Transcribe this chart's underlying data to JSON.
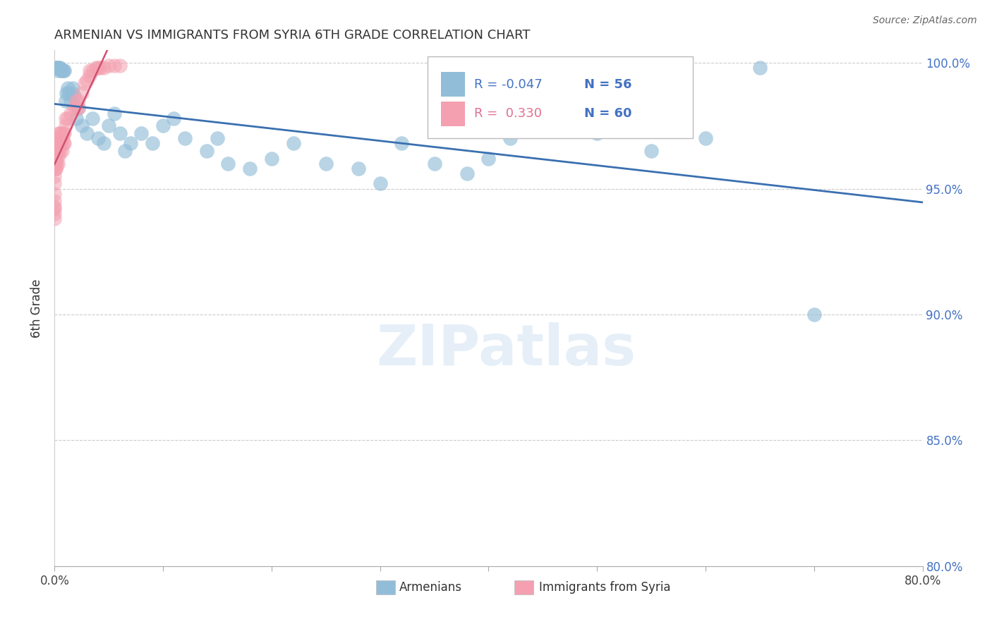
{
  "title": "ARMENIAN VS IMMIGRANTS FROM SYRIA 6TH GRADE CORRELATION CHART",
  "source": "Source: ZipAtlas.com",
  "ylabel": "6th Grade",
  "xlim": [
    0.0,
    0.8
  ],
  "ylim": [
    0.8,
    1.005
  ],
  "xticks": [
    0.0,
    0.1,
    0.2,
    0.3,
    0.4,
    0.5,
    0.6,
    0.7,
    0.8
  ],
  "xtick_labels_show": [
    "0.0%",
    "80.0%"
  ],
  "ytick_labels_right": [
    "80.0%",
    "85.0%",
    "90.0%",
    "95.0%",
    "100.0%"
  ],
  "yticks": [
    0.8,
    0.85,
    0.9,
    0.95,
    1.0
  ],
  "blue_color": "#92BDD8",
  "pink_color": "#F4A0B0",
  "trend_blue_color": "#3A70B0",
  "trend_pink_color": "#D05070",
  "legend_R_blue": "-0.047",
  "legend_N_blue": "56",
  "legend_R_pink": "0.330",
  "legend_N_pink": "60",
  "watermark_text": "ZIPatlas",
  "blue_x": [
    0.001,
    0.002,
    0.003,
    0.003,
    0.004,
    0.005,
    0.006,
    0.007,
    0.008,
    0.009,
    0.01,
    0.011,
    0.012,
    0.013,
    0.015,
    0.016,
    0.017,
    0.018,
    0.02,
    0.022,
    0.025,
    0.03,
    0.035,
    0.04,
    0.045,
    0.05,
    0.055,
    0.06,
    0.065,
    0.07,
    0.08,
    0.09,
    0.1,
    0.11,
    0.12,
    0.14,
    0.15,
    0.16,
    0.18,
    0.2,
    0.22,
    0.25,
    0.28,
    0.3,
    0.32,
    0.35,
    0.38,
    0.4,
    0.42,
    0.45,
    0.5,
    0.52,
    0.55,
    0.6,
    0.65,
    0.7
  ],
  "blue_y": [
    0.998,
    0.998,
    0.998,
    0.997,
    0.998,
    0.998,
    0.997,
    0.997,
    0.997,
    0.997,
    0.985,
    0.988,
    0.99,
    0.988,
    0.985,
    0.988,
    0.99,
    0.987,
    0.978,
    0.982,
    0.975,
    0.972,
    0.978,
    0.97,
    0.968,
    0.975,
    0.98,
    0.972,
    0.965,
    0.968,
    0.972,
    0.968,
    0.975,
    0.978,
    0.97,
    0.965,
    0.97,
    0.96,
    0.958,
    0.962,
    0.968,
    0.96,
    0.958,
    0.952,
    0.968,
    0.96,
    0.956,
    0.962,
    0.97,
    0.978,
    0.972,
    0.978,
    0.965,
    0.97,
    0.998,
    0.9
  ],
  "pink_x": [
    0.0,
    0.0,
    0.0,
    0.0,
    0.0,
    0.0,
    0.0,
    0.0,
    0.0,
    0.0,
    0.001,
    0.001,
    0.001,
    0.001,
    0.001,
    0.001,
    0.002,
    0.002,
    0.002,
    0.002,
    0.003,
    0.003,
    0.003,
    0.003,
    0.004,
    0.004,
    0.004,
    0.005,
    0.005,
    0.005,
    0.006,
    0.006,
    0.007,
    0.007,
    0.008,
    0.008,
    0.009,
    0.009,
    0.01,
    0.01,
    0.012,
    0.015,
    0.018,
    0.02,
    0.02,
    0.022,
    0.022,
    0.025,
    0.028,
    0.03,
    0.032,
    0.032,
    0.035,
    0.038,
    0.04,
    0.042,
    0.045,
    0.05,
    0.055,
    0.06
  ],
  "pink_y": [
    0.958,
    0.96,
    0.955,
    0.952,
    0.948,
    0.945,
    0.943,
    0.942,
    0.94,
    0.938,
    0.958,
    0.96,
    0.963,
    0.965,
    0.958,
    0.962,
    0.96,
    0.963,
    0.965,
    0.968,
    0.96,
    0.965,
    0.968,
    0.97,
    0.963,
    0.968,
    0.972,
    0.965,
    0.968,
    0.972,
    0.968,
    0.972,
    0.965,
    0.97,
    0.968,
    0.972,
    0.968,
    0.972,
    0.975,
    0.978,
    0.978,
    0.98,
    0.982,
    0.982,
    0.985,
    0.982,
    0.985,
    0.988,
    0.992,
    0.993,
    0.995,
    0.997,
    0.997,
    0.998,
    0.998,
    0.998,
    0.998,
    0.999,
    0.999,
    0.999
  ]
}
